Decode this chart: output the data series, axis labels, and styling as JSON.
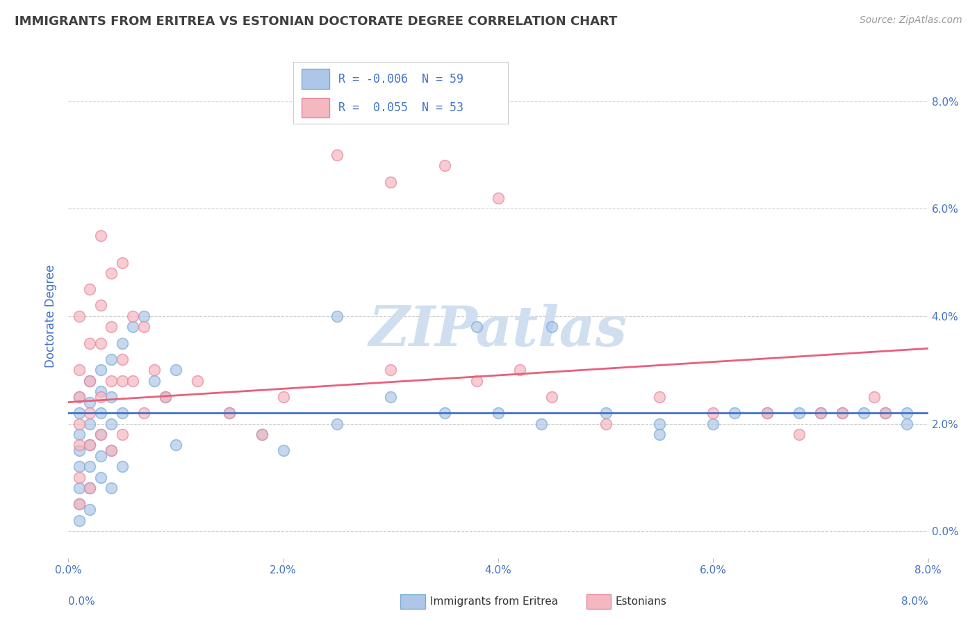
{
  "title": "IMMIGRANTS FROM ERITREA VS ESTONIAN DOCTORATE DEGREE CORRELATION CHART",
  "source_text": "Source: ZipAtlas.com",
  "ylabel": "Doctorate Degree",
  "xlim": [
    0.0,
    0.08
  ],
  "ylim": [
    -0.005,
    0.085
  ],
  "plot_ylim": [
    -0.005,
    0.085
  ],
  "xticks": [
    0.0,
    0.02,
    0.04,
    0.06,
    0.08
  ],
  "yticks": [
    0.0,
    0.02,
    0.04,
    0.06,
    0.08
  ],
  "xtick_labels": [
    "0.0%",
    "2.0%",
    "4.0%",
    "6.0%",
    "8.0%"
  ],
  "ytick_labels_right": [
    "0.0%",
    "2.0%",
    "4.0%",
    "6.0%",
    "8.0%"
  ],
  "legend1_R": "-0.006",
  "legend1_N": "59",
  "legend2_R": "0.055",
  "legend2_N": "53",
  "legend1_color": "#aec6e8",
  "legend2_color": "#f4b8c1",
  "line1_color": "#4472c4",
  "line2_color": "#e8607a",
  "scatter1_facecolor": "#aec6e8",
  "scatter1_edgecolor": "#7aaed6",
  "scatter2_facecolor": "#f4b8c1",
  "scatter2_edgecolor": "#e888a0",
  "watermark": "ZIPatlas",
  "watermark_color": "#d0dff0",
  "background_color": "#ffffff",
  "grid_color": "#cccccc",
  "title_color": "#404040",
  "axis_label_color": "#4472c4",
  "tick_label_color": "#4472c4",
  "blue_line_y0": 0.022,
  "blue_line_y1": 0.022,
  "pink_line_y0": 0.024,
  "pink_line_y1": 0.034,
  "blue_x": [
    0.001,
    0.001,
    0.001,
    0.001,
    0.001,
    0.001,
    0.001,
    0.001,
    0.002,
    0.002,
    0.002,
    0.002,
    0.002,
    0.002,
    0.002,
    0.003,
    0.003,
    0.003,
    0.003,
    0.003,
    0.003,
    0.004,
    0.004,
    0.004,
    0.004,
    0.004,
    0.005,
    0.005,
    0.005,
    0.006,
    0.007,
    0.008,
    0.009,
    0.01,
    0.01,
    0.015,
    0.018,
    0.02,
    0.025,
    0.03,
    0.038,
    0.04,
    0.044,
    0.05,
    0.055,
    0.06,
    0.062,
    0.065,
    0.068,
    0.07,
    0.072,
    0.074,
    0.076,
    0.078,
    0.078,
    0.055,
    0.045,
    0.035,
    0.025
  ],
  "blue_y": [
    0.025,
    0.022,
    0.018,
    0.015,
    0.012,
    0.008,
    0.005,
    0.002,
    0.028,
    0.024,
    0.02,
    0.016,
    0.012,
    0.008,
    0.004,
    0.03,
    0.026,
    0.022,
    0.018,
    0.014,
    0.01,
    0.032,
    0.025,
    0.02,
    0.015,
    0.008,
    0.035,
    0.022,
    0.012,
    0.038,
    0.04,
    0.028,
    0.025,
    0.03,
    0.016,
    0.022,
    0.018,
    0.015,
    0.02,
    0.025,
    0.038,
    0.022,
    0.02,
    0.022,
    0.018,
    0.02,
    0.022,
    0.022,
    0.022,
    0.022,
    0.022,
    0.022,
    0.022,
    0.022,
    0.02,
    0.02,
    0.038,
    0.022,
    0.04
  ],
  "pink_x": [
    0.001,
    0.001,
    0.001,
    0.001,
    0.001,
    0.001,
    0.001,
    0.002,
    0.002,
    0.002,
    0.002,
    0.002,
    0.002,
    0.003,
    0.003,
    0.003,
    0.003,
    0.003,
    0.004,
    0.004,
    0.004,
    0.004,
    0.005,
    0.005,
    0.005,
    0.006,
    0.007,
    0.008,
    0.009,
    0.012,
    0.015,
    0.018,
    0.02,
    0.025,
    0.03,
    0.035,
    0.04,
    0.042,
    0.045,
    0.05,
    0.055,
    0.06,
    0.065,
    0.068,
    0.07,
    0.072,
    0.075,
    0.076,
    0.038,
    0.03,
    0.005,
    0.006,
    0.007
  ],
  "pink_y": [
    0.04,
    0.03,
    0.025,
    0.02,
    0.016,
    0.01,
    0.005,
    0.045,
    0.035,
    0.028,
    0.022,
    0.016,
    0.008,
    0.055,
    0.042,
    0.035,
    0.025,
    0.018,
    0.048,
    0.038,
    0.028,
    0.015,
    0.05,
    0.032,
    0.018,
    0.04,
    0.038,
    0.03,
    0.025,
    0.028,
    0.022,
    0.018,
    0.025,
    0.07,
    0.065,
    0.068,
    0.062,
    0.03,
    0.025,
    0.02,
    0.025,
    0.022,
    0.022,
    0.018,
    0.022,
    0.022,
    0.025,
    0.022,
    0.028,
    0.03,
    0.028,
    0.028,
    0.022
  ]
}
